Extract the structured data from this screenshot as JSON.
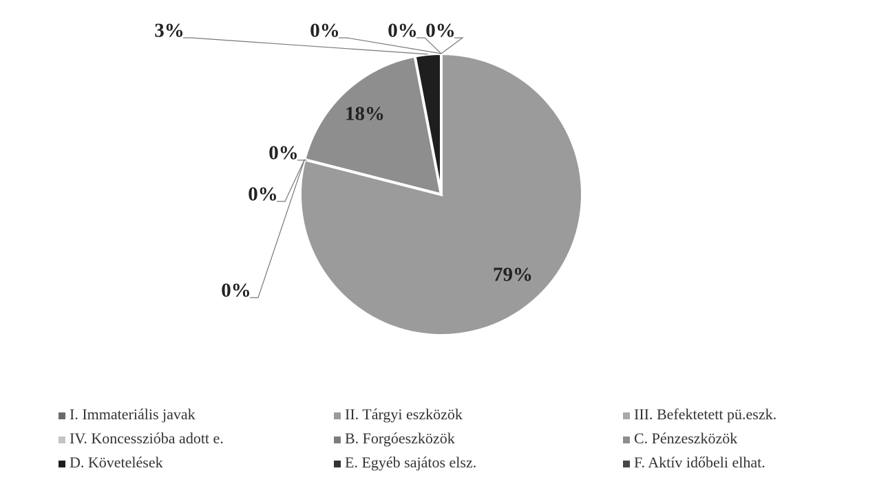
{
  "chart_data": {
    "type": "pie",
    "categories": [
      "I. Immateriális javak",
      "II. Tárgyi eszközök",
      "III. Befektetett pü.eszk.",
      "IV. Koncesszióba adott e.",
      "B. Forgóeszközök",
      "C. Pénzeszközök",
      "D. Követelések",
      "E. Egyéb sajátos elsz.",
      "F. Aktív időbeli elhat."
    ],
    "values": [
      0,
      79,
      0,
      0,
      0,
      18,
      3,
      0,
      0
    ],
    "value_labels": [
      "0%",
      "79%",
      "0%",
      "0%",
      "0%",
      "18%",
      "3%",
      "0%",
      "0%"
    ],
    "colors": [
      "#6a6a6a",
      "#9b9b9b",
      "#a9a9a9",
      "#c4c4c4",
      "#7d7d7d",
      "#8e8e8e",
      "#1e1e1e",
      "#333333",
      "#474747"
    ],
    "legend": "bottom"
  }
}
